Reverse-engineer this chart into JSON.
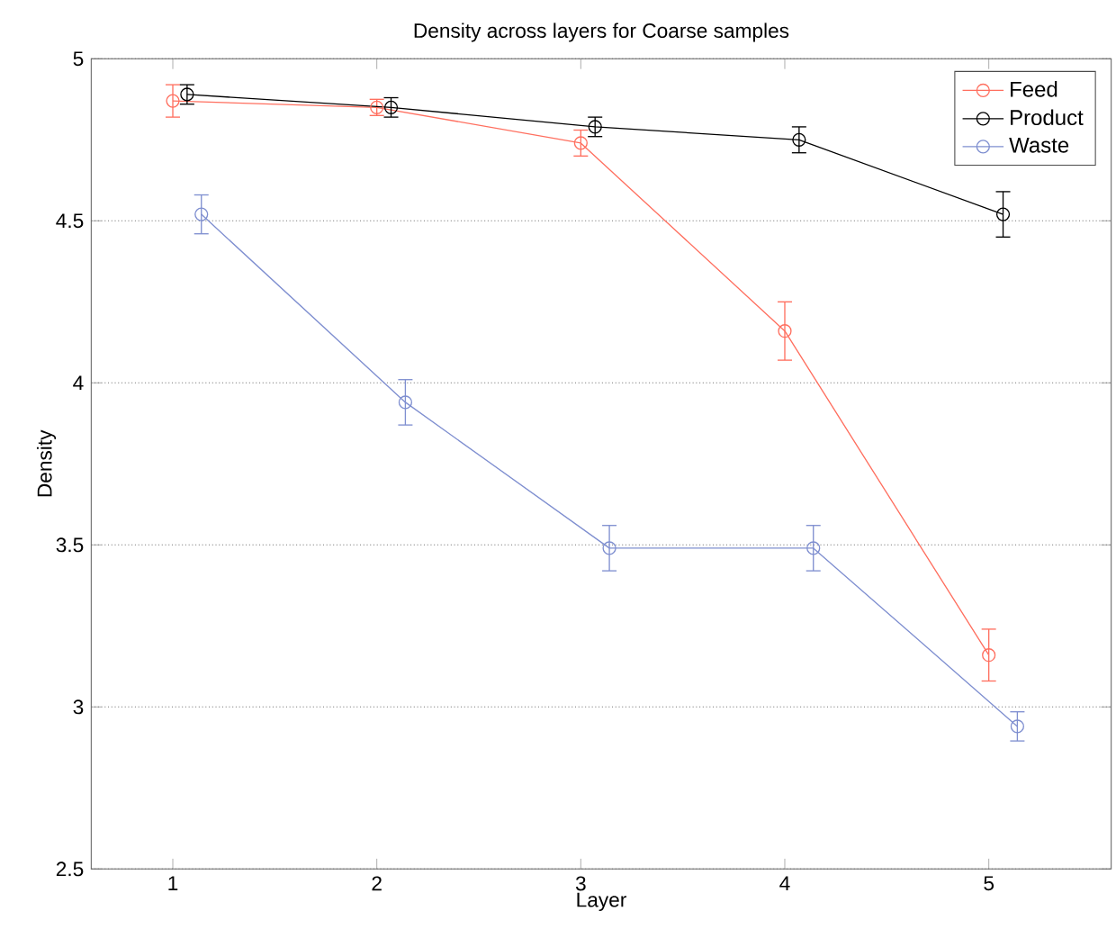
{
  "chart_data": {
    "type": "line",
    "title": "Density across layers for Coarse samples",
    "xlabel": "Layer",
    "ylabel": "Density",
    "xlim": [
      0.6,
      5.6
    ],
    "xticks": [
      1,
      2,
      3,
      4,
      5
    ],
    "ylim": [
      2.5,
      5
    ],
    "yticks": [
      2.5,
      3,
      3.5,
      4,
      4.5,
      5
    ],
    "grid": "y",
    "legend": "top right",
    "marker": "circle",
    "line_style": "solid",
    "series": [
      {
        "name": "Feed",
        "color": "#ff6f5f",
        "x": [
          1,
          2,
          3,
          4,
          5
        ],
        "values": [
          4.87,
          4.85,
          4.74,
          4.16,
          3.16
        ],
        "errors": [
          0.05,
          0.025,
          0.04,
          0.09,
          0.08
        ]
      },
      {
        "name": "Product",
        "color": "#000000",
        "x": [
          1.07,
          2.07,
          3.07,
          4.07,
          5.07
        ],
        "values": [
          4.89,
          4.85,
          4.79,
          4.75,
          4.52
        ],
        "errors": [
          0.03,
          0.03,
          0.03,
          0.04,
          0.07
        ]
      },
      {
        "name": "Waste",
        "color": "#7f8fd0",
        "x": [
          1.14,
          2.14,
          3.14,
          4.14,
          5.14
        ],
        "values": [
          4.52,
          3.94,
          3.49,
          3.49,
          2.94
        ],
        "errors": [
          0.06,
          0.07,
          0.07,
          0.07,
          0.045
        ]
      }
    ]
  }
}
